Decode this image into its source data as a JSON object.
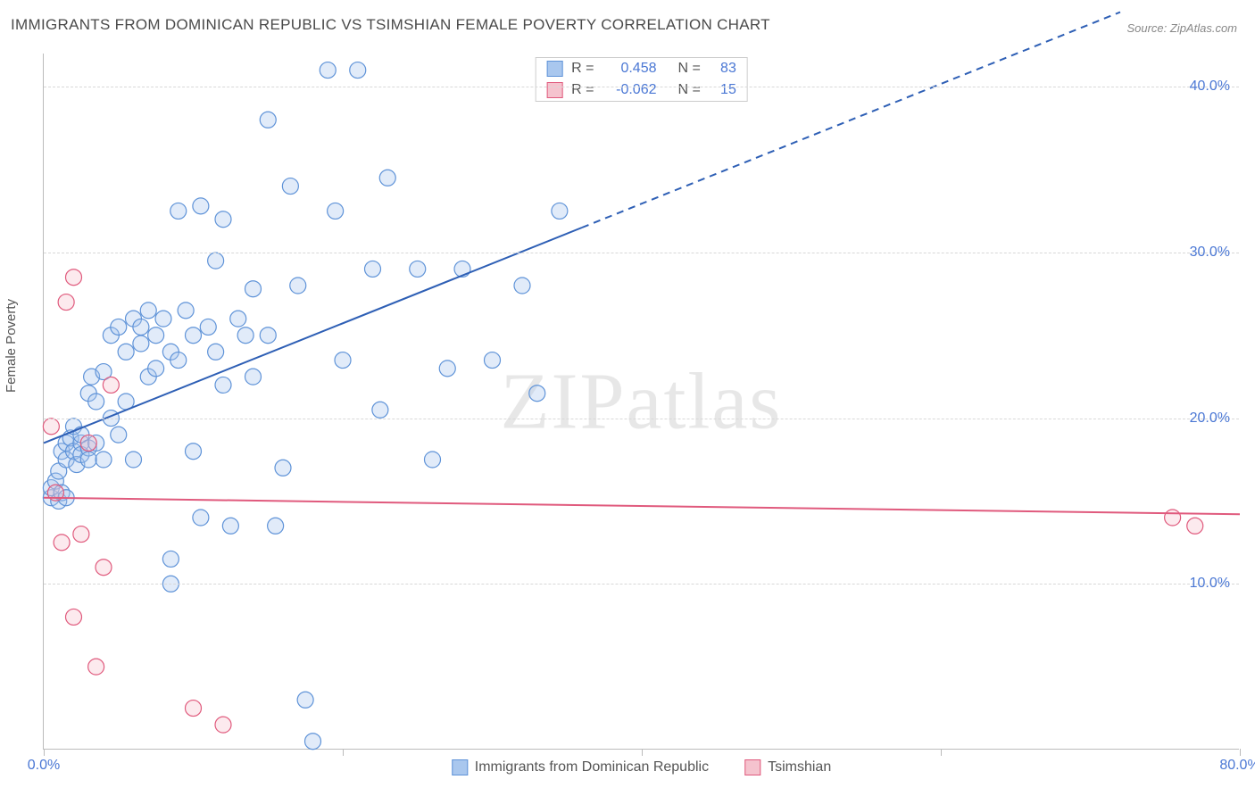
{
  "title": "IMMIGRANTS FROM DOMINICAN REPUBLIC VS TSIMSHIAN FEMALE POVERTY CORRELATION CHART",
  "source": "Source: ZipAtlas.com",
  "ylabel": "Female Poverty",
  "watermark": "ZIPatlas",
  "chart": {
    "type": "scatter",
    "xlim": [
      0,
      80
    ],
    "ylim": [
      0,
      42
    ],
    "yticks": [
      10,
      20,
      30,
      40
    ],
    "ytick_labels": [
      "10.0%",
      "20.0%",
      "30.0%",
      "40.0%"
    ],
    "xticks": [
      0,
      20,
      40,
      60,
      80
    ],
    "xtick_labels": [
      "0.0%",
      "",
      "",
      "",
      "80.0%"
    ],
    "grid_color": "#d8d8d8",
    "axis_color": "#bbbbbb",
    "background_color": "#ffffff",
    "label_color": "#4a77d4",
    "text_color": "#555555",
    "marker_radius": 9,
    "series": [
      {
        "name": "Immigrants from Dominican Republic",
        "fill": "#a9c7ee",
        "stroke": "#5f93d8",
        "r_value": "0.458",
        "n_value": "83",
        "trend": {
          "x1": 0,
          "y1": 18.5,
          "x2": 36,
          "y2": 31.5,
          "dash_x2": 72,
          "dash_y2": 44.5,
          "color": "#2e5fb5",
          "width": 2
        },
        "points": [
          [
            0.5,
            15.2
          ],
          [
            0.5,
            15.8
          ],
          [
            0.8,
            16.2
          ],
          [
            1.0,
            15.0
          ],
          [
            1.0,
            16.8
          ],
          [
            1.2,
            18.0
          ],
          [
            1.2,
            15.5
          ],
          [
            1.5,
            15.2
          ],
          [
            1.5,
            17.5
          ],
          [
            1.5,
            18.5
          ],
          [
            1.8,
            18.8
          ],
          [
            2.0,
            19.5
          ],
          [
            2.0,
            18.0
          ],
          [
            2.2,
            17.2
          ],
          [
            2.5,
            18.5
          ],
          [
            2.5,
            17.8
          ],
          [
            2.5,
            19.0
          ],
          [
            3.0,
            18.2
          ],
          [
            3.0,
            17.5
          ],
          [
            3.0,
            21.5
          ],
          [
            3.2,
            22.5
          ],
          [
            3.5,
            18.5
          ],
          [
            3.5,
            21.0
          ],
          [
            4.0,
            22.8
          ],
          [
            4.0,
            17.5
          ],
          [
            4.5,
            20.0
          ],
          [
            4.5,
            25.0
          ],
          [
            5.0,
            25.5
          ],
          [
            5.0,
            19.0
          ],
          [
            5.5,
            21.0
          ],
          [
            5.5,
            24.0
          ],
          [
            6.0,
            26.0
          ],
          [
            6.0,
            17.5
          ],
          [
            6.5,
            24.5
          ],
          [
            6.5,
            25.5
          ],
          [
            7.0,
            22.5
          ],
          [
            7.0,
            26.5
          ],
          [
            7.5,
            23.0
          ],
          [
            7.5,
            25.0
          ],
          [
            8.0,
            26.0
          ],
          [
            8.5,
            10.0
          ],
          [
            8.5,
            11.5
          ],
          [
            8.5,
            24.0
          ],
          [
            9.0,
            32.5
          ],
          [
            9.0,
            23.5
          ],
          [
            9.5,
            26.5
          ],
          [
            10.0,
            18.0
          ],
          [
            10.0,
            25.0
          ],
          [
            10.5,
            14.0
          ],
          [
            10.5,
            32.8
          ],
          [
            11.0,
            25.5
          ],
          [
            11.5,
            29.5
          ],
          [
            11.5,
            24.0
          ],
          [
            12.0,
            32.0
          ],
          [
            12.0,
            22.0
          ],
          [
            12.5,
            13.5
          ],
          [
            13.0,
            26.0
          ],
          [
            13.5,
            25.0
          ],
          [
            14.0,
            22.5
          ],
          [
            14.0,
            27.8
          ],
          [
            15.0,
            25.0
          ],
          [
            15.0,
            38.0
          ],
          [
            15.5,
            13.5
          ],
          [
            16.0,
            17.0
          ],
          [
            16.5,
            34.0
          ],
          [
            17.0,
            28.0
          ],
          [
            17.5,
            3.0
          ],
          [
            18.0,
            0.5
          ],
          [
            19.0,
            41.0
          ],
          [
            19.5,
            32.5
          ],
          [
            20.0,
            23.5
          ],
          [
            21.0,
            41.0
          ],
          [
            22.0,
            29.0
          ],
          [
            22.5,
            20.5
          ],
          [
            23.0,
            34.5
          ],
          [
            25.0,
            29.0
          ],
          [
            26.0,
            17.5
          ],
          [
            27.0,
            23.0
          ],
          [
            28.0,
            29.0
          ],
          [
            30.0,
            23.5
          ],
          [
            32.0,
            28.0
          ],
          [
            33.0,
            21.5
          ],
          [
            34.5,
            32.5
          ]
        ]
      },
      {
        "name": "Tsimshian",
        "fill": "#f5c3ce",
        "stroke": "#e05a7d",
        "r_value": "-0.062",
        "n_value": "15",
        "trend": {
          "x1": 0,
          "y1": 15.2,
          "x2": 80,
          "y2": 14.2,
          "color": "#e05a7d",
          "width": 2
        },
        "points": [
          [
            0.5,
            19.5
          ],
          [
            0.8,
            15.5
          ],
          [
            1.2,
            12.5
          ],
          [
            1.5,
            27.0
          ],
          [
            2.0,
            8.0
          ],
          [
            2.0,
            28.5
          ],
          [
            2.5,
            13.0
          ],
          [
            3.0,
            18.5
          ],
          [
            3.5,
            5.0
          ],
          [
            4.0,
            11.0
          ],
          [
            4.5,
            22.0
          ],
          [
            10.0,
            2.5
          ],
          [
            12.0,
            1.5
          ],
          [
            75.5,
            14.0
          ],
          [
            77.0,
            13.5
          ]
        ]
      }
    ]
  },
  "legend_bottom": [
    {
      "label": "Immigrants from Dominican Republic",
      "fill": "#a9c7ee",
      "stroke": "#5f93d8"
    },
    {
      "label": "Tsimshian",
      "fill": "#f5c3ce",
      "stroke": "#e05a7d"
    }
  ]
}
